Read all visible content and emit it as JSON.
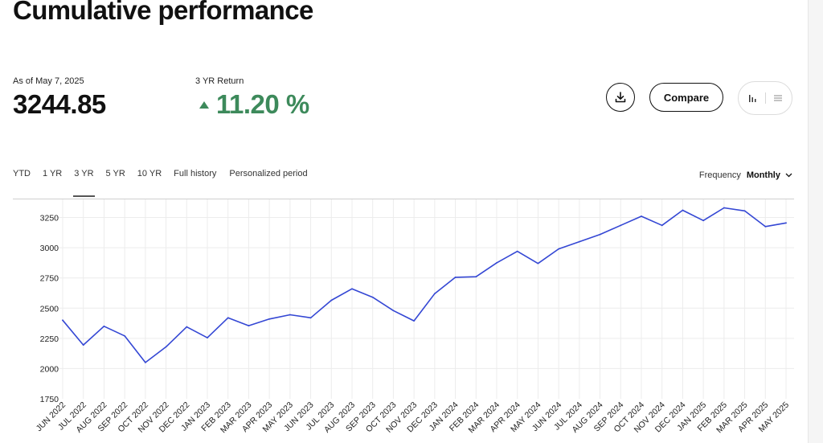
{
  "page": {
    "title": "Cumulative performance"
  },
  "stats": {
    "as_of_label": "As of May 7, 2025",
    "value": "3244.85",
    "return_label": "3 YR Return",
    "return_value": "11.20 %",
    "return_color": "#3d8a5b"
  },
  "actions": {
    "download_icon": "download-icon",
    "compare_label": "Compare",
    "chart_view_icon": "bar-chart-icon",
    "table_view_icon": "list-icon"
  },
  "periods": {
    "items": [
      "YTD",
      "1 YR",
      "3 YR",
      "5 YR",
      "10 YR",
      "Full history",
      "Personalized period"
    ],
    "active": "3 YR"
  },
  "frequency": {
    "label": "Frequency",
    "value": "Monthly",
    "icon": "chevron-down-icon"
  },
  "chart_data": {
    "type": "line",
    "line_color": "#3447d4",
    "grid": true,
    "ylim": [
      1750,
      3400
    ],
    "yticks": [
      1750,
      2000,
      2250,
      2500,
      2750,
      3000,
      3250
    ],
    "categories": [
      "JUN 2022",
      "JUL 2022",
      "AUG 2022",
      "SEP 2022",
      "OCT 2022",
      "NOV 2022",
      "DEC 2022",
      "JAN 2023",
      "FEB 2023",
      "MAR 2023",
      "APR 2023",
      "MAY 2023",
      "JUN 2023",
      "JUL 2023",
      "AUG 2023",
      "SEP 2023",
      "OCT 2023",
      "NOV 2023",
      "DEC 2023",
      "JAN 2024",
      "FEB 2024",
      "MAR 2024",
      "APR 2024",
      "MAY 2024",
      "JUN 2024",
      "JUL 2024",
      "AUG 2024",
      "SEP 2024",
      "OCT 2024",
      "NOV 2024",
      "DEC 2024",
      "JAN 2025",
      "FEB 2025",
      "MAR 2025",
      "APR 2025",
      "MAY 2025"
    ],
    "series": [
      {
        "values": [
          2400,
          2195,
          2350,
          2270,
          2050,
          2180,
          2345,
          2255,
          2420,
          2355,
          2410,
          2445,
          2420,
          2565,
          2660,
          2590,
          2480,
          2395,
          2620,
          2755,
          2760,
          2875,
          2970,
          2870,
          2990,
          3050,
          3110,
          3185,
          3260,
          3185,
          3310,
          3225,
          3330,
          3305,
          3175,
          3205
        ]
      }
    ]
  }
}
